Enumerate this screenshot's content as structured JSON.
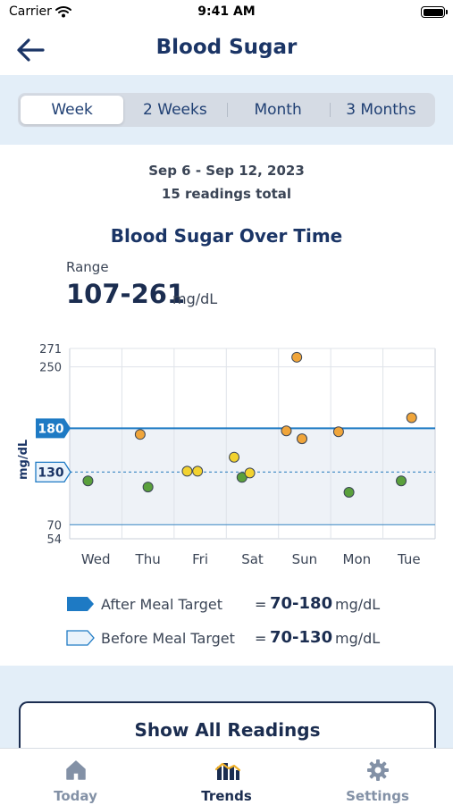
{
  "status_bar": {
    "carrier": "Carrier",
    "time": "9:41 AM"
  },
  "header": {
    "title": "Blood Sugar",
    "back_icon": "arrow-left-icon"
  },
  "range_tabs": [
    {
      "label": "Week",
      "selected": true
    },
    {
      "label": "2 Weeks",
      "selected": false
    },
    {
      "label": "Month",
      "selected": false
    },
    {
      "label": "3 Months",
      "selected": false
    }
  ],
  "summary": {
    "date_range": "Sep 6 - Sep 12, 2023",
    "count_text": "15 readings total"
  },
  "chart_title": "Blood Sugar Over Time",
  "range_stat": {
    "label": "Range",
    "value": "107-261",
    "unit": "mg/dL"
  },
  "colors": {
    "in_range": "#5aa03c",
    "elevated": "#f2d230",
    "high": "#f0a53a",
    "target_line": "#1e7ac4",
    "accent": "#1b3566"
  },
  "chart_data": {
    "type": "scatter",
    "ylabel": "mg/dL",
    "ylim": [
      54,
      271
    ],
    "y_ticks": [
      "271",
      "250",
      "70",
      "54"
    ],
    "target_labels": [
      "180",
      "130"
    ],
    "categories": [
      "Wed",
      "Thu",
      "Fri",
      "Sat",
      "Sun",
      "Mon",
      "Tue"
    ],
    "after_meal_target": 180,
    "before_meal_target": 130,
    "low_line": 70,
    "grid": true,
    "points": [
      {
        "day": 0.35,
        "value": 120,
        "status": "in"
      },
      {
        "day": 1.35,
        "value": 173,
        "status": "high"
      },
      {
        "day": 1.5,
        "value": 113,
        "status": "in"
      },
      {
        "day": 2.25,
        "value": 131,
        "status": "elevated"
      },
      {
        "day": 2.45,
        "value": 131,
        "status": "elevated"
      },
      {
        "day": 3.15,
        "value": 147,
        "status": "elevated"
      },
      {
        "day": 3.3,
        "value": 124,
        "status": "in"
      },
      {
        "day": 3.45,
        "value": 129,
        "status": "elevated"
      },
      {
        "day": 4.15,
        "value": 177,
        "status": "high"
      },
      {
        "day": 4.35,
        "value": 261,
        "status": "high"
      },
      {
        "day": 4.45,
        "value": 168,
        "status": "high"
      },
      {
        "day": 5.15,
        "value": 176,
        "status": "high"
      },
      {
        "day": 5.35,
        "value": 107,
        "status": "in"
      },
      {
        "day": 6.35,
        "value": 120,
        "status": "in"
      },
      {
        "day": 6.55,
        "value": 192,
        "status": "high"
      }
    ]
  },
  "legend": [
    {
      "name": "After Meal Target",
      "equals": "=",
      "value": "70-180",
      "unit": "mg/dL"
    },
    {
      "name": "Before Meal Target",
      "equals": "=",
      "value": "70-130",
      "unit": "mg/dL"
    }
  ],
  "actions": {
    "show_all": "Show All Readings"
  },
  "tab_bar": [
    {
      "label": "Today",
      "icon": "house-icon",
      "active": false
    },
    {
      "label": "Trends",
      "icon": "trends-icon",
      "active": true
    },
    {
      "label": "Settings",
      "icon": "gear-icon",
      "active": false
    }
  ]
}
